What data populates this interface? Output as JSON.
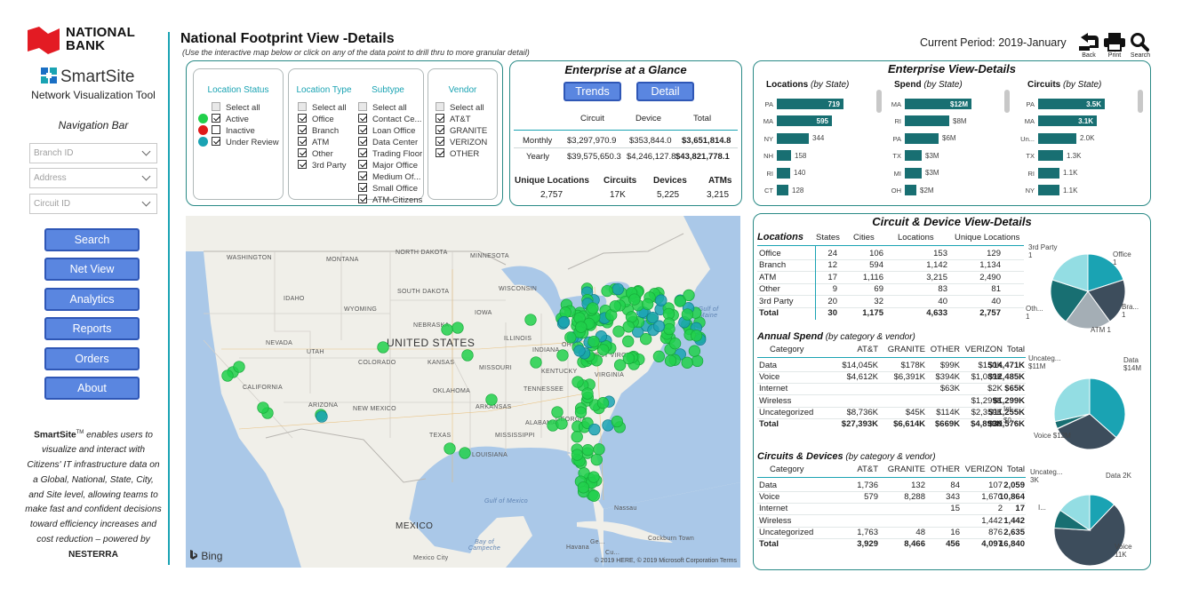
{
  "brand": {
    "name_line1": "NATIONAL",
    "name_line2": "BANK",
    "colors": {
      "logo_red": "#e31b23",
      "accent": "#1aa3b3",
      "button": "#5a86e0"
    }
  },
  "app": {
    "name": "SmartSite",
    "subtitle": "Network Visualization Tool"
  },
  "nav": {
    "label": "Navigation Bar",
    "filters": [
      {
        "placeholder": "Branch ID"
      },
      {
        "placeholder": "Address"
      },
      {
        "placeholder": "Circuit ID"
      }
    ],
    "buttons": [
      "Search",
      "Net View",
      "Analytics",
      "Reports",
      "Orders",
      "About"
    ]
  },
  "blurb": {
    "brand": "SmartSite",
    "tm": "TM",
    "text": " enables users to visualize and interact with Citizens' IT infrastructure data on a Global, National, State, City, and Site level, allowing teams to make fast and confident decisions toward efficiency increases and cost reduction – powered by ",
    "powered": "NESTERRA"
  },
  "header": {
    "title": "National Footprint View -Details",
    "subtitle": "(Use the interactive map below or click on any of the data point to drill thru to more granular detail)",
    "period": "Current Period: 2019-January",
    "tools": [
      "Back",
      "Print",
      "Search"
    ]
  },
  "filters": {
    "location_status": {
      "title": "Location Status",
      "items": [
        {
          "label": "Select all",
          "checked": false,
          "color": ""
        },
        {
          "label": "Active",
          "checked": true,
          "color": "#21d04b"
        },
        {
          "label": "Inactive",
          "checked": false,
          "color": "#e01b1b"
        },
        {
          "label": "Under Review",
          "checked": true,
          "color": "#1aa3b3"
        }
      ]
    },
    "location_type": {
      "title": "Location Type",
      "items": [
        {
          "label": "Select all",
          "checked": false
        },
        {
          "label": "Office",
          "checked": true
        },
        {
          "label": "Branch",
          "checked": true
        },
        {
          "label": "ATM",
          "checked": true
        },
        {
          "label": "Other",
          "checked": true
        },
        {
          "label": "3rd Party",
          "checked": true
        }
      ]
    },
    "subtype": {
      "title": "Subtype",
      "items": [
        {
          "label": "Select all",
          "checked": false
        },
        {
          "label": "Contact Ce...",
          "checked": true
        },
        {
          "label": "Loan Office",
          "checked": true
        },
        {
          "label": "Data Center",
          "checked": true
        },
        {
          "label": "Trading Floor",
          "checked": true
        },
        {
          "label": "Major Office",
          "checked": true
        },
        {
          "label": "Medium Of...",
          "checked": true
        },
        {
          "label": "Small Office",
          "checked": true
        },
        {
          "label": "ATM-Citizens",
          "checked": true
        }
      ]
    },
    "vendor": {
      "title": "Vendor",
      "items": [
        {
          "label": "Select all",
          "checked": false
        },
        {
          "label": "AT&T",
          "checked": true
        },
        {
          "label": "GRANITE",
          "checked": true
        },
        {
          "label": "VERIZON",
          "checked": true
        },
        {
          "label": "OTHER",
          "checked": true
        }
      ]
    }
  },
  "glance": {
    "title": "Enterprise at a Glance",
    "buttons": [
      "Trends",
      "Detail"
    ],
    "columns": [
      "Circuit",
      "Device",
      "Total"
    ],
    "rows": [
      {
        "label": "Monthly",
        "circuit": "$3,297,970.9",
        "device": "$353,844.0",
        "total": "$3,651,814.8"
      },
      {
        "label": "Yearly",
        "circuit": "$39,575,650.3",
        "device": "$4,246,127.8",
        "total": "$43,821,778.1"
      }
    ],
    "kpis": [
      {
        "label": "Unique Locations",
        "value": "2,757"
      },
      {
        "label": "Circuits",
        "value": "17K"
      },
      {
        "label": "Devices",
        "value": "5,225"
      },
      {
        "label": "ATMs",
        "value": "3,215"
      }
    ]
  },
  "enterprise_view": {
    "title": "Enterprise View-Details",
    "charts": [
      {
        "title_bold": "Locations",
        "title_rest": "(by State)",
        "max": 719,
        "bars": [
          {
            "label": "PA",
            "value": 719,
            "text": "719"
          },
          {
            "label": "MA",
            "value": 595,
            "text": "595"
          },
          {
            "label": "NY",
            "value": 344,
            "text": "344"
          },
          {
            "label": "NH",
            "value": 158,
            "text": "158"
          },
          {
            "label": "RI",
            "value": 140,
            "text": "140"
          },
          {
            "label": "CT",
            "value": 128,
            "text": "128"
          }
        ]
      },
      {
        "title_bold": "Spend",
        "title_rest": "(by State)",
        "max": 12,
        "bars": [
          {
            "label": "MA",
            "value": 12,
            "text": "$12M"
          },
          {
            "label": "RI",
            "value": 8,
            "text": "$8M"
          },
          {
            "label": "PA",
            "value": 6,
            "text": "$6M"
          },
          {
            "label": "TX",
            "value": 3,
            "text": "$3M"
          },
          {
            "label": "MI",
            "value": 3,
            "text": "$3M"
          },
          {
            "label": "OH",
            "value": 2,
            "text": "$2M"
          }
        ]
      },
      {
        "title_bold": "Circuits",
        "title_rest": "(by State)",
        "max": 3.5,
        "bars": [
          {
            "label": "PA",
            "value": 3.5,
            "text": "3.5K"
          },
          {
            "label": "MA",
            "value": 3.1,
            "text": "3.1K"
          },
          {
            "label": "Un...",
            "value": 2.0,
            "text": "2.0K"
          },
          {
            "label": "TX",
            "value": 1.3,
            "text": "1.3K"
          },
          {
            "label": "RI",
            "value": 1.1,
            "text": "1.1K"
          },
          {
            "label": "NY",
            "value": 1.1,
            "text": "1.1K"
          }
        ]
      }
    ]
  },
  "circuit_device": {
    "title": "Circuit & Device View-Details",
    "locations": {
      "title": "Locations",
      "columns": [
        "States",
        "Cities",
        "Locations",
        "Unique Locations"
      ],
      "rows": [
        [
          "Office",
          "24",
          "106",
          "153",
          "129"
        ],
        [
          "Branch",
          "12",
          "594",
          "1,142",
          "1,134"
        ],
        [
          "ATM",
          "17",
          "1,116",
          "3,215",
          "2,490"
        ],
        [
          "Other",
          "9",
          "69",
          "83",
          "81"
        ],
        [
          "3rd Party",
          "20",
          "32",
          "40",
          "40"
        ]
      ],
      "total": [
        "Total",
        "30",
        "1,175",
        "4,633",
        "2,757"
      ],
      "pie": [
        {
          "label": "Office",
          "sub": "1",
          "value": 1,
          "color": "#1aa3b3"
        },
        {
          "label": "Bra...",
          "sub": "1",
          "value": 1,
          "color": "#3d4d5c"
        },
        {
          "label": "ATM 1",
          "sub": "",
          "value": 1,
          "color": "#a4aeb5"
        },
        {
          "label": "Oth...",
          "sub": "1",
          "value": 1,
          "color": "#186f72"
        },
        {
          "label": "3rd Party",
          "sub": "1",
          "value": 1,
          "color": "#93dde3"
        }
      ]
    },
    "annual_spend": {
      "title": "Annual Spend",
      "title_rest": "(by category & vendor)",
      "columns": [
        "Category",
        "AT&T",
        "GRANITE",
        "OTHER",
        "VERIZON",
        "Total"
      ],
      "rows": [
        [
          "Data",
          "$14,045K",
          "$178K",
          "$99K",
          "$150K",
          "$14,471K"
        ],
        [
          "Voice",
          "$4,612K",
          "$6,391K",
          "$394K",
          "$1,089K",
          "$12,485K"
        ],
        [
          "Internet",
          "",
          "",
          "$63K",
          "$2K",
          "$65K"
        ],
        [
          "Wireless",
          "",
          "",
          "",
          "$1,299K",
          "$1,299K"
        ],
        [
          "Uncategorized",
          "$8,736K",
          "$45K",
          "$114K",
          "$2,359K",
          "$11,255K"
        ]
      ],
      "total": [
        "Total",
        "$27,393K",
        "$6,614K",
        "$669K",
        "$4,899K",
        "$39,576K"
      ],
      "pie": [
        {
          "label": "Data",
          "sub": "$14M",
          "value": 14471,
          "color": "#1aa3b3"
        },
        {
          "label": "Voice $12M",
          "sub": "",
          "value": 12485,
          "color": "#3d4d5c"
        },
        {
          "label": "$0...",
          "sub": "",
          "value": 65,
          "color": "#a4aeb5"
        },
        {
          "label": "Int...",
          "sub": "",
          "value": 1299,
          "color": "#186f72"
        },
        {
          "label": "Uncateg...",
          "sub": "$11M",
          "value": 11255,
          "color": "#93dde3"
        }
      ]
    },
    "circuits_devices": {
      "title": "Circuits & Devices",
      "title_rest": "(by category & vendor)",
      "columns": [
        "Category",
        "AT&T",
        "GRANITE",
        "OTHER",
        "VERIZON",
        "Total"
      ],
      "rows": [
        [
          "Data",
          "1,736",
          "132",
          "84",
          "107",
          "2,059"
        ],
        [
          "Voice",
          "579",
          "8,288",
          "343",
          "1,670",
          "10,864"
        ],
        [
          "Internet",
          "",
          "",
          "15",
          "2",
          "17"
        ],
        [
          "Wireless",
          "",
          "",
          "",
          "1,442",
          "1,442"
        ],
        [
          "Uncategorized",
          "1,763",
          "48",
          "16",
          "876",
          "2,635"
        ]
      ],
      "total": [
        "Total",
        "3,929",
        "8,466",
        "456",
        "4,097",
        "16,840"
      ],
      "pie": [
        {
          "label": "Data 2K",
          "sub": "",
          "value": 2059,
          "color": "#1aa3b3"
        },
        {
          "label": "Voice",
          "sub": "11K",
          "value": 10864,
          "color": "#3d4d5c"
        },
        {
          "label": "I...",
          "sub": "",
          "value": 1442,
          "color": "#186f72"
        },
        {
          "label": "Uncateg...",
          "sub": "3K",
          "value": 2635,
          "color": "#93dde3"
        }
      ]
    }
  },
  "map": {
    "labels": {
      "countries": [
        "UNITED STATES",
        "MEXICO"
      ],
      "states": [
        "WASHINGTON",
        "MONTANA",
        "NORTH DAKOTA",
        "MINNESOTA",
        "SOUTH DAKOTA",
        "WISCONSIN",
        "IDAHO",
        "WYOMING",
        "NEBRASKA",
        "IOWA",
        "ILLINOIS",
        "INDIANA",
        "OHIO",
        "NEVADA",
        "UTAH",
        "COLORADO",
        "KANSAS",
        "MISSOURI",
        "KENTUCKY",
        "WEST VIRGINIA",
        "VIRGINIA",
        "CALIFORNIA",
        "ARIZONA",
        "NEW MEXICO",
        "OKLAHOMA",
        "TENNESSEE",
        "ARKANSAS",
        "ALABAMA",
        "GEORGIA",
        "TEXAS",
        "MISSISSIPPI",
        "LOUISIANA"
      ],
      "water": [
        "Gulf of Mexico",
        "Bay of Campeche",
        "Gulf of Maine"
      ],
      "cities": [
        "Havana",
        "Nassau",
        "Cockburn Town",
        "Mexico City",
        "Ge...",
        "Cu..."
      ],
      "attribution": "Bing",
      "copyright": "© 2019 HERE, © 2019 Microsoft Corporation Terms"
    },
    "colors": {
      "active": "#21d04b",
      "review": "#1aa3b3",
      "land": "#f0efe9",
      "water": "#aac8e8"
    }
  }
}
